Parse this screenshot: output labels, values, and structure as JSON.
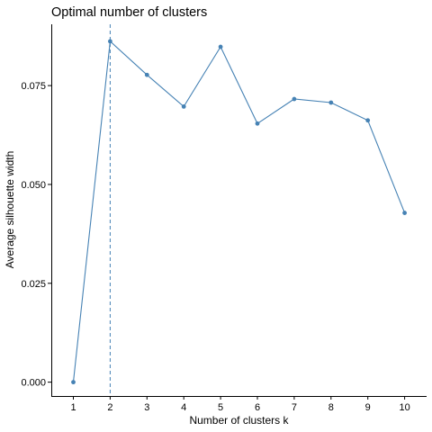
{
  "chart_data": {
    "type": "line",
    "title": "Optimal number of clusters",
    "xlabel": "Number of clusters k",
    "ylabel": "Average silhouette width",
    "x": [
      "1",
      "2",
      "3",
      "4",
      "5",
      "6",
      "7",
      "8",
      "9",
      "10"
    ],
    "series": [
      {
        "values": [
          0.0,
          0.0862,
          0.0777,
          0.0697,
          0.0848,
          0.0654,
          0.0716,
          0.0707,
          0.0662,
          0.0428
        ]
      }
    ],
    "yticks": [
      "0.000",
      "0.025",
      "0.050",
      "0.075"
    ],
    "ytick_values": [
      0.0,
      0.025,
      0.05,
      0.075
    ],
    "ylim": [
      -0.0035,
      0.0905
    ],
    "optimal_k": 2,
    "grid": false,
    "colors": {
      "line": "#4682B4",
      "point": "#4682B4",
      "reference_line": "#4682B4"
    }
  }
}
